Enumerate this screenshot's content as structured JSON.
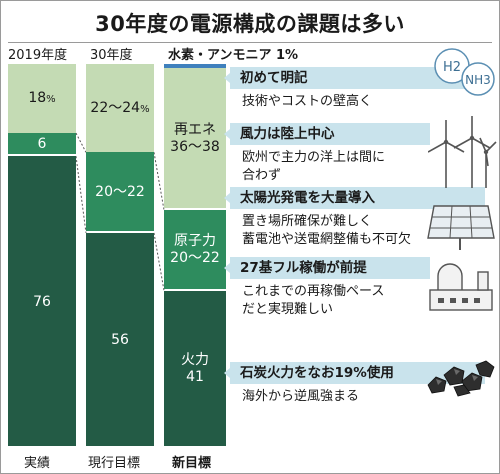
{
  "chart_data": {
    "type": "bar",
    "stacked": true,
    "title": "30年度の電源構成の課題は多い",
    "column_headers": [
      "2019年度",
      "30年度"
    ],
    "hydrogen_label": "水素・アンモニア 1%",
    "categories": [
      "実績",
      "現行目標",
      "新目標"
    ],
    "ylim": [
      0,
      100
    ],
    "stacks": [
      {
        "category": "実績",
        "segments": [
          {
            "label": "76",
            "value": 76
          },
          {
            "label": "6",
            "value": 6
          },
          {
            "label": "18",
            "unit": "%",
            "value": 18
          }
        ]
      },
      {
        "category": "現行目標",
        "segments": [
          {
            "label": "56",
            "value": 56
          },
          {
            "label": "20〜22",
            "value": 21
          },
          {
            "label": "22〜24",
            "unit": "%",
            "value": 23
          }
        ]
      },
      {
        "category": "新目標",
        "segments": [
          {
            "label": "火力\n41",
            "value": 41
          },
          {
            "label": "原子力\n20〜22",
            "value": 21
          },
          {
            "label": "再エネ\n36〜38",
            "value": 37
          },
          {
            "label": "",
            "value": 1
          }
        ]
      }
    ],
    "colors": {
      "thermal": "#235b45",
      "nuclear": "#2e8c5e",
      "renewable": "#c4dbb4",
      "hydrogen": "#3f80bd"
    }
  },
  "annotations": [
    {
      "heading": "初めて明記",
      "lines": [
        "技術やコストの壁高く"
      ]
    },
    {
      "heading": "風力は陸上中心",
      "lines": [
        "欧州で主力の洋上は間に",
        "合わず"
      ]
    },
    {
      "heading": "太陽光発電を大量導入",
      "lines": [
        "置き場所確保が難しく",
        "蓄電池や送電網整備も不可欠"
      ]
    },
    {
      "heading": "27基フル稼働が前提",
      "lines": [
        "これまでの再稼働ペース",
        "だと実現難しい"
      ]
    },
    {
      "heading": "石炭火力をなお19%使用",
      "lines": [
        "海外から逆風強まる"
      ]
    }
  ],
  "icons": {
    "h2": "H2",
    "nh3": "NH3",
    "names": [
      "hydrogen-ammonia-icon",
      "wind-turbine-icon",
      "solar-panel-icon",
      "nuclear-plant-icon",
      "coal-icon"
    ]
  }
}
